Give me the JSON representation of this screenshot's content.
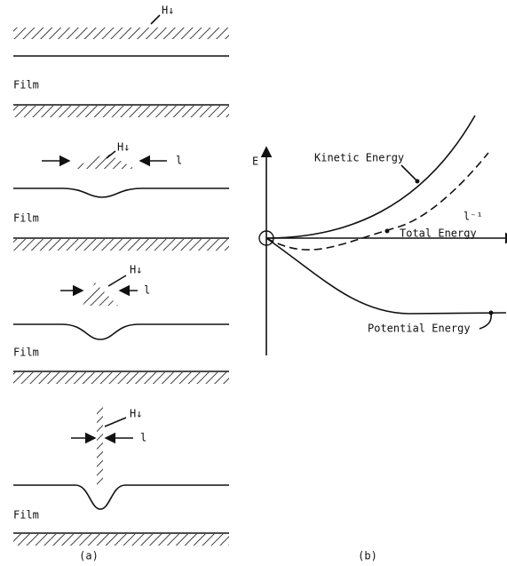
{
  "panel_a": {
    "rows": [
      {
        "field": "H↓",
        "film": "Film"
      },
      {
        "field": "H↓",
        "width": "l",
        "film": "Film"
      },
      {
        "field": "H↓",
        "width": "l",
        "film": "Film"
      },
      {
        "field": "H↓",
        "width": "l",
        "film": "Film"
      }
    ],
    "caption": "(a)"
  },
  "panel_b": {
    "y_axis": "E",
    "x_axis": "l⁻¹",
    "curves": [
      "Kinetic Energy",
      "Total Energy",
      "Potential Energy"
    ],
    "caption": "(b)"
  }
}
